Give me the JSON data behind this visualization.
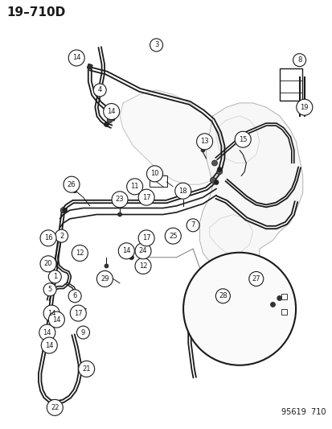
{
  "title": "19–710D",
  "footer": "95619  710",
  "bg_color": "#ffffff",
  "line_color": "#1a1a1a",
  "lw_hose": 1.8,
  "lw_thin": 0.7,
  "lw_comp": 0.8
}
